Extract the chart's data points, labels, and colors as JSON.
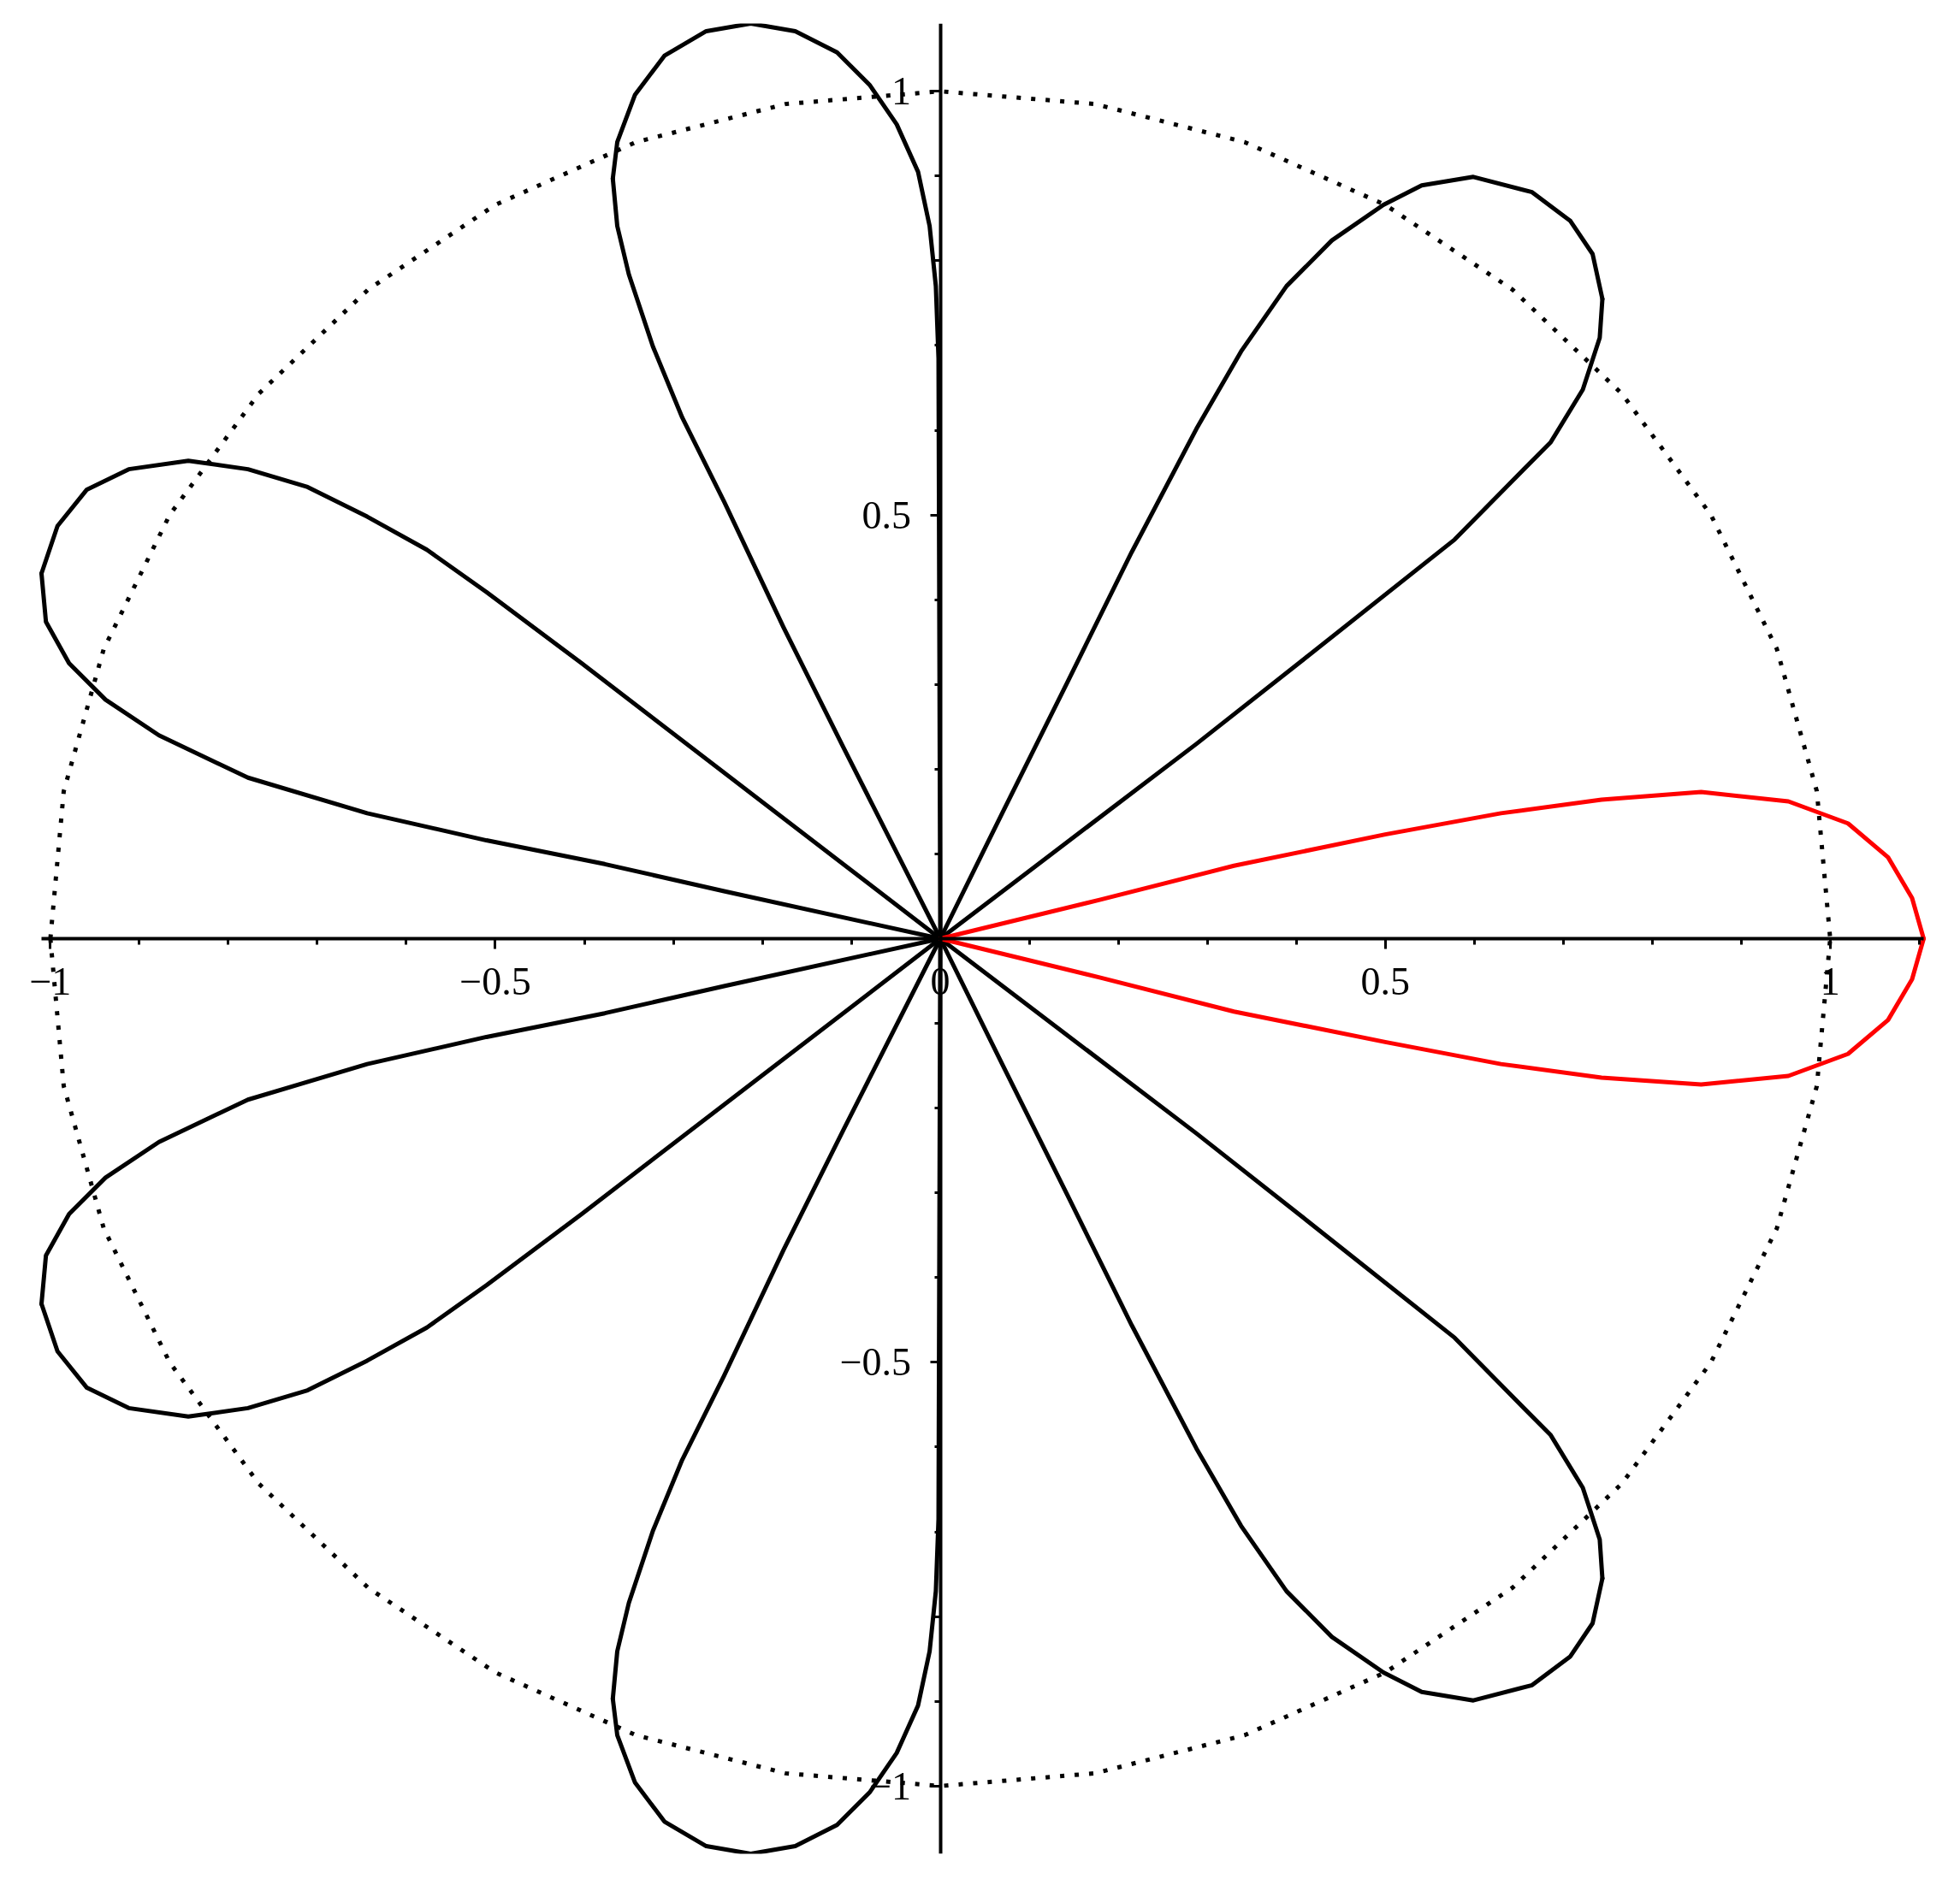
{
  "chart_data": {
    "type": "line",
    "xlim": [
      -1.01,
      1.105
    ],
    "ylim": [
      -1.08,
      1.08
    ],
    "xticks": [
      {
        "value": -1,
        "label": "−1"
      },
      {
        "value": -0.9,
        "label": null
      },
      {
        "value": -0.8,
        "label": null
      },
      {
        "value": -0.7,
        "label": null
      },
      {
        "value": -0.6,
        "label": null
      },
      {
        "value": -0.5,
        "label": "−0.5"
      },
      {
        "value": -0.4,
        "label": null
      },
      {
        "value": -0.3,
        "label": null
      },
      {
        "value": -0.2,
        "label": null
      },
      {
        "value": -0.1,
        "label": null
      },
      0,
      {
        "value": 0.1,
        "label": null
      },
      {
        "value": 0.2,
        "label": null
      },
      {
        "value": 0.3,
        "label": null
      },
      {
        "value": 0.4,
        "label": null
      },
      0.5,
      {
        "value": 0.6,
        "label": null
      },
      {
        "value": 0.7,
        "label": null
      },
      {
        "value": 0.8,
        "label": null
      },
      {
        "value": 0.9,
        "label": null
      },
      1,
      {
        "value": 1.1,
        "label": null
      }
    ],
    "yticks": [
      {
        "value": -1,
        "label": "−1"
      },
      {
        "value": -0.9,
        "label": null
      },
      {
        "value": -0.8,
        "label": null
      },
      {
        "value": -0.7,
        "label": null
      },
      {
        "value": -0.6,
        "label": null
      },
      {
        "value": -0.5,
        "label": "−0.5"
      },
      {
        "value": -0.4,
        "label": null
      },
      {
        "value": -0.3,
        "label": null
      },
      {
        "value": -0.2,
        "label": null
      },
      {
        "value": -0.1,
        "label": null
      },
      {
        "value": 0.1,
        "label": null
      },
      {
        "value": 0.2,
        "label": null
      },
      {
        "value": 0.3,
        "label": null
      },
      {
        "value": 0.4,
        "label": null
      },
      0.5,
      {
        "value": 0.6,
        "label": null
      },
      {
        "value": 0.7,
        "label": null
      },
      {
        "value": 0.8,
        "label": null
      },
      {
        "value": 0.9,
        "label": null
      },
      1
    ],
    "grid": false,
    "line_style": "solid",
    "series": [
      {
        "color": "#000000",
        "line_style": "dotted",
        "x": [
          -1,
          -0.985,
          -0.94,
          -0.866,
          -0.766,
          -0.643,
          -0.5,
          -0.342,
          -0.174,
          0,
          0.174,
          0.342,
          0.5,
          0.643,
          0.766,
          0.866,
          0.94,
          0.985,
          1
        ],
        "values": [
          0,
          0.174,
          0.342,
          0.5,
          0.643,
          0.766,
          0.866,
          0.94,
          0.985,
          1,
          0.985,
          0.94,
          0.866,
          0.766,
          0.643,
          0.5,
          0.342,
          0.174,
          0
        ]
      },
      {
        "color": "#000000",
        "line_style": "dotted",
        "x": [
          -1,
          -0.985,
          -0.94,
          -0.866,
          -0.766,
          -0.643,
          -0.5,
          -0.342,
          -0.174,
          0,
          0.174,
          0.342,
          0.5,
          0.643,
          0.766,
          0.866,
          0.94,
          0.985,
          1
        ],
        "values": [
          0,
          -0.174,
          -0.342,
          -0.5,
          -0.643,
          -0.766,
          -0.866,
          -0.94,
          -0.985,
          -1,
          -0.985,
          -0.94,
          -0.866,
          -0.766,
          -0.643,
          -0.5,
          -0.342,
          -0.174,
          0
        ]
      },
      {
        "color": "#000000",
        "x": [
          0,
          0.288,
          0.404,
          0.578,
          0.636,
          0.686,
          0.722,
          0.741,
          0.744
        ],
        "values": [
          0,
          0.23,
          0.326,
          0.471,
          0.533,
          0.586,
          0.648,
          0.709,
          0.755
        ]
      },
      {
        "color": "#000000",
        "x": [
          0,
          0.07,
          0.143,
          0.215,
          0.288,
          0.338,
          0.389,
          0.44,
          0.498,
          0.541,
          0.599,
          0.665,
          0.708,
          0.733,
          0.744
        ],
        "values": [
          0,
          0.149,
          0.303,
          0.456,
          0.602,
          0.693,
          0.77,
          0.824,
          0.866,
          0.889,
          0.899,
          0.881,
          0.847,
          0.808,
          0.755
        ]
      },
      {
        "color": "#000000",
        "x": [
          -0.368,
          -0.363,
          -0.343,
          -0.31,
          -0.263,
          -0.213,
          -0.163,
          -0.116,
          -0.079,
          -0.049,
          -0.025,
          -0.012,
          -0.005,
          -0.002,
          0
        ],
        "values": [
          0.897,
          0.94,
          0.996,
          1.042,
          1.071,
          1.08,
          1.071,
          1.046,
          1.007,
          0.961,
          0.905,
          0.841,
          0.77,
          0.685,
          0
        ]
      },
      {
        "color": "#000000",
        "x": [
          -0.368,
          -0.363,
          -0.35,
          -0.323,
          -0.29,
          -0.243,
          -0.176,
          -0.109,
          0
        ],
        "values": [
          0.897,
          0.841,
          0.784,
          0.699,
          0.615,
          0.516,
          0.367,
          0.226,
          0
        ]
      },
      {
        "color": "#000000",
        "x": [
          -1.01,
          -0.992,
          -0.959,
          -0.912,
          -0.845,
          -0.778,
          -0.711,
          -0.644,
          -0.577,
          -0.51,
          -0.403,
          0
        ],
        "values": [
          0.431,
          0.487,
          0.53,
          0.554,
          0.564,
          0.554,
          0.533,
          0.498,
          0.459,
          0.409,
          0.325,
          0
        ]
      },
      {
        "color": "#000000",
        "x": [
          -1.01,
          -1.005,
          -0.979,
          -0.938,
          -0.878,
          -0.778,
          -0.644,
          -0.51,
          -0.377,
          -0.243,
          0
        ],
        "values": [
          0.431,
          0.374,
          0.325,
          0.282,
          0.24,
          0.19,
          0.148,
          0.116,
          0.088,
          0.056,
          0
        ]
      },
      {
        "color": "#000000",
        "x": [
          -1.01,
          -0.992,
          -0.959,
          -0.912,
          -0.845,
          -0.778,
          -0.711,
          -0.644,
          -0.577,
          -0.51,
          -0.403,
          0
        ],
        "values": [
          -0.431,
          -0.487,
          -0.53,
          -0.554,
          -0.564,
          -0.554,
          -0.533,
          -0.498,
          -0.459,
          -0.409,
          -0.325,
          0
        ]
      },
      {
        "color": "#000000",
        "x": [
          -1.01,
          -1.005,
          -0.979,
          -0.938,
          -0.878,
          -0.778,
          -0.644,
          -0.51,
          -0.377,
          -0.243,
          0
        ],
        "values": [
          -0.431,
          -0.374,
          -0.325,
          -0.282,
          -0.24,
          -0.19,
          -0.148,
          -0.116,
          -0.088,
          -0.056,
          0
        ]
      },
      {
        "color": "#000000",
        "x": [
          -0.368,
          -0.363,
          -0.343,
          -0.31,
          -0.263,
          -0.213,
          -0.163,
          -0.116,
          -0.079,
          -0.049,
          -0.025,
          -0.012,
          -0.005,
          -0.002,
          0
        ],
        "values": [
          -0.897,
          -0.94,
          -0.996,
          -1.042,
          -1.071,
          -1.08,
          -1.071,
          -1.046,
          -1.007,
          -0.961,
          -0.905,
          -0.841,
          -0.77,
          -0.685,
          0
        ]
      },
      {
        "color": "#000000",
        "x": [
          -0.368,
          -0.363,
          -0.35,
          -0.323,
          -0.29,
          -0.243,
          -0.176,
          -0.109,
          0
        ],
        "values": [
          -0.897,
          -0.841,
          -0.784,
          -0.699,
          -0.615,
          -0.516,
          -0.367,
          -0.226,
          0
        ]
      },
      {
        "color": "#000000",
        "x": [
          0,
          0.288,
          0.404,
          0.578,
          0.636,
          0.686,
          0.722,
          0.741,
          0.744
        ],
        "values": [
          0,
          -0.23,
          -0.326,
          -0.471,
          -0.533,
          -0.586,
          -0.648,
          -0.709,
          -0.755
        ]
      },
      {
        "color": "#000000",
        "x": [
          0,
          0.07,
          0.143,
          0.215,
          0.288,
          0.338,
          0.389,
          0.44,
          0.498,
          0.541,
          0.599,
          0.665,
          0.708,
          0.733,
          0.744
        ],
        "values": [
          0,
          -0.149,
          -0.303,
          -0.456,
          -0.602,
          -0.693,
          -0.77,
          -0.824,
          -0.866,
          -0.889,
          -0.899,
          -0.881,
          -0.847,
          -0.808,
          -0.755
        ]
      },
      {
        "color": "#ff0000",
        "x": [
          0,
          0.18,
          0.33,
          0.5,
          0.63,
          0.743,
          0.855,
          0.953,
          1.02,
          1.065,
          1.092,
          1.105
        ],
        "values": [
          0,
          0.046,
          0.086,
          0.123,
          0.148,
          0.164,
          0.173,
          0.162,
          0.136,
          0.096,
          0.048,
          0
        ]
      },
      {
        "color": "#ff0000",
        "x": [
          0,
          0.18,
          0.33,
          0.5,
          0.63,
          0.743,
          0.855,
          0.953,
          1.02,
          1.065,
          1.092,
          1.105
        ],
        "values": [
          0,
          -0.046,
          -0.086,
          -0.122,
          -0.148,
          -0.164,
          -0.172,
          -0.162,
          -0.136,
          -0.096,
          -0.048,
          0
        ]
      }
    ]
  }
}
